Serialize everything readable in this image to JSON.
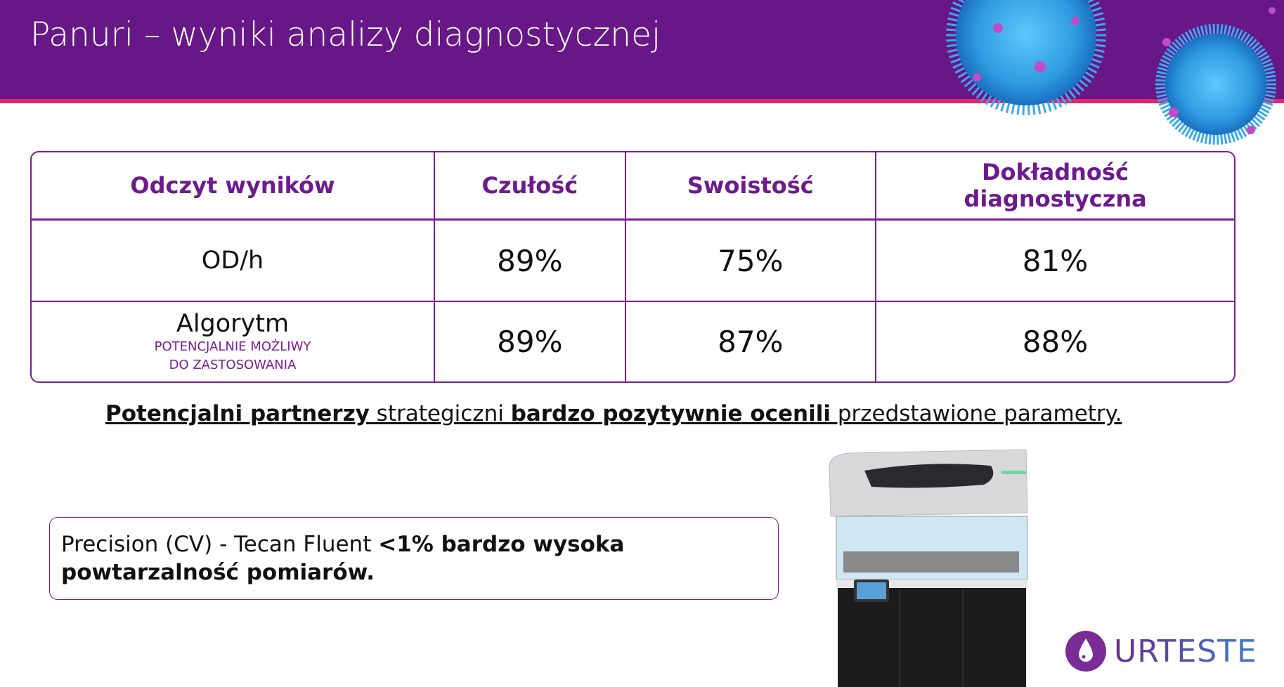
{
  "header": {
    "title": "Panuri – wyniki analizy diagnostycznej"
  },
  "table": {
    "headers": [
      "Odczyt wyników",
      "Czułość",
      "Swoistość",
      "Dokładność diagnostyczna"
    ],
    "rows": [
      {
        "label": "OD/h",
        "sublabel_1": "",
        "sublabel_2": "",
        "values": [
          "89%",
          "75%",
          "81%"
        ]
      },
      {
        "label": "Algorytm",
        "sublabel_1": "POTENCJALNIE MOŻLIWY",
        "sublabel_2": "DO ZASTOSOWANIA",
        "values": [
          "89%",
          "87%",
          "88%"
        ]
      }
    ]
  },
  "sentence": {
    "part1": "Potencjalni partnerzy",
    "part2": " strategiczni ",
    "part3": "bardzo pozytywnie ocenili",
    "part4": " przedstawione parametry."
  },
  "precision_box": {
    "normal": "Precision (CV) - Tecan Fluent ",
    "bold": "<1% bardzo wysoka powtarzalność pomiarów."
  },
  "logo": {
    "text": "URTESTE",
    "icon": "drop-icon"
  },
  "colors": {
    "header": "#681787",
    "accent_line": "#e0276e",
    "border": "#7a1d98"
  }
}
